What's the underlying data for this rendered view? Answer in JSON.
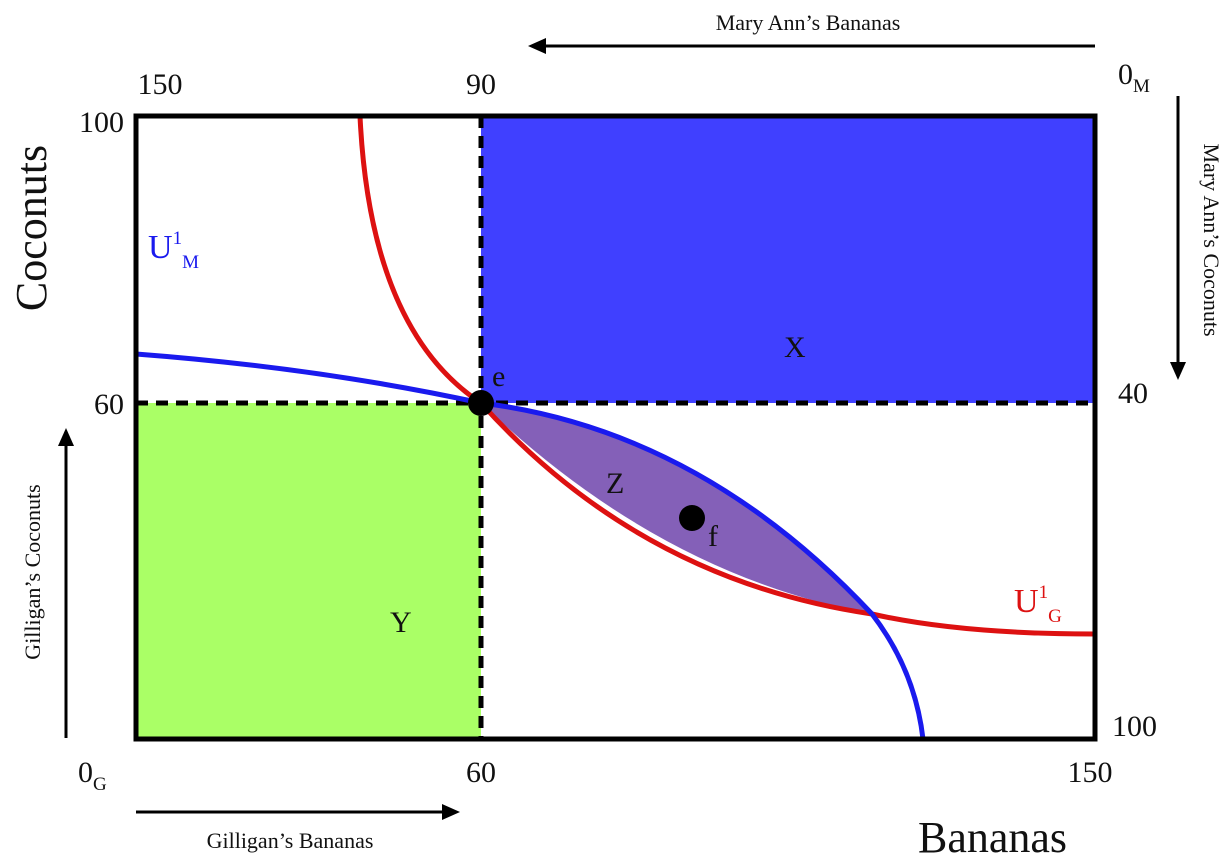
{
  "axes": {
    "x_title": "Bananas",
    "y_title": "Coconuts",
    "top_arrow_label": "Mary Ann’s Bananas",
    "right_arrow_label": "Mary Ann’s Coconuts",
    "bottom_arrow_label": "Gilligan’s Bananas",
    "left_arrow_label": "Gilligan’s Coconuts"
  },
  "ticks": {
    "bottom": [
      "60",
      "150"
    ],
    "top": [
      "150",
      "90"
    ],
    "left": [
      "100",
      "60"
    ],
    "right": [
      "40",
      "100"
    ]
  },
  "origins": {
    "gilligan": {
      "main": "0",
      "sub": "G"
    },
    "maryann": {
      "main": "0",
      "sub": "M"
    }
  },
  "regions": {
    "x": "X",
    "y": "Y",
    "z": "Z"
  },
  "points": {
    "e": "e",
    "f": "f"
  },
  "curves": {
    "um": {
      "main": "U",
      "sup": "1",
      "sub": "M"
    },
    "ug": {
      "main": "U",
      "sup": "1",
      "sub": "G"
    }
  },
  "colors": {
    "region_x": "#4040ff",
    "region_y": "#aaff66",
    "region_z": "#8460b8",
    "curve_maryann": "#1a1aee",
    "curve_gilligan": "#dd1111"
  }
}
